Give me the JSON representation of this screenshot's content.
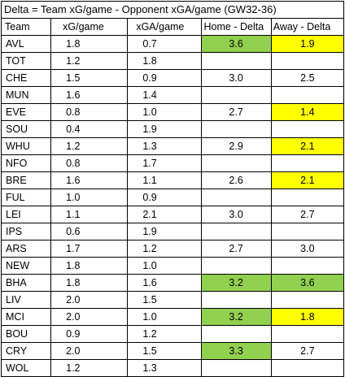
{
  "title": "Delta = Team xG/game - Opponent xGA/game (GW32-36)",
  "headers": {
    "team": "Team",
    "xg": "xG/game",
    "xga": "xGA/game",
    "home": "Home - Delta",
    "away": "Away - Delta"
  },
  "colors": {
    "green": "#92d050",
    "yellow": "#ffff00",
    "border": "#000000"
  },
  "rows": [
    {
      "team": "AVL",
      "xg": "1.8",
      "xga": "0.7",
      "home": "3.6",
      "away": "1.9",
      "home_highlight": "green",
      "away_highlight": "yellow"
    },
    {
      "team": "TOT",
      "xg": "1.2",
      "xga": "1.8",
      "home": "",
      "away": "",
      "home_highlight": "",
      "away_highlight": ""
    },
    {
      "team": "CHE",
      "xg": "1.5",
      "xga": "0.9",
      "home": "3.0",
      "away": "2.5",
      "home_highlight": "",
      "away_highlight": ""
    },
    {
      "team": "MUN",
      "xg": "1.6",
      "xga": "1.4",
      "home": "",
      "away": "",
      "home_highlight": "",
      "away_highlight": ""
    },
    {
      "team": "EVE",
      "xg": "0.8",
      "xga": "1.0",
      "home": "2.7",
      "away": "1.4",
      "home_highlight": "",
      "away_highlight": "yellow"
    },
    {
      "team": "SOU",
      "xg": "0.4",
      "xga": "1.9",
      "home": "",
      "away": "",
      "home_highlight": "",
      "away_highlight": ""
    },
    {
      "team": "WHU",
      "xg": "1.2",
      "xga": "1.3",
      "home": "2.9",
      "away": "2.1",
      "home_highlight": "",
      "away_highlight": "yellow"
    },
    {
      "team": "NFO",
      "xg": "0.8",
      "xga": "1.7",
      "home": "",
      "away": "",
      "home_highlight": "",
      "away_highlight": ""
    },
    {
      "team": "BRE",
      "xg": "1.6",
      "xga": "1.1",
      "home": "2.6",
      "away": "2.1",
      "home_highlight": "",
      "away_highlight": "yellow"
    },
    {
      "team": "FUL",
      "xg": "1.0",
      "xga": "0.9",
      "home": "",
      "away": "",
      "home_highlight": "",
      "away_highlight": ""
    },
    {
      "team": "LEI",
      "xg": "1.1",
      "xga": "2.1",
      "home": "3.0",
      "away": "2.7",
      "home_highlight": "",
      "away_highlight": ""
    },
    {
      "team": "IPS",
      "xg": "0.6",
      "xga": "1.9",
      "home": "",
      "away": "",
      "home_highlight": "",
      "away_highlight": ""
    },
    {
      "team": "ARS",
      "xg": "1.7",
      "xga": "1.2",
      "home": "2.7",
      "away": "3.0",
      "home_highlight": "",
      "away_highlight": ""
    },
    {
      "team": "NEW",
      "xg": "1.8",
      "xga": "1.0",
      "home": "",
      "away": "",
      "home_highlight": "",
      "away_highlight": ""
    },
    {
      "team": "BHA",
      "xg": "1.8",
      "xga": "1.6",
      "home": "3.2",
      "away": "3.6",
      "home_highlight": "green",
      "away_highlight": "green"
    },
    {
      "team": "LIV",
      "xg": "2.0",
      "xga": "1.5",
      "home": "",
      "away": "",
      "home_highlight": "",
      "away_highlight": ""
    },
    {
      "team": "MCI",
      "xg": "2.0",
      "xga": "1.0",
      "home": "3.2",
      "away": "1.8",
      "home_highlight": "green",
      "away_highlight": "yellow"
    },
    {
      "team": "BOU",
      "xg": "0.9",
      "xga": "1.2",
      "home": "",
      "away": "",
      "home_highlight": "",
      "away_highlight": ""
    },
    {
      "team": "CRY",
      "xg": "2.0",
      "xga": "1.5",
      "home": "3.3",
      "away": "2.7",
      "home_highlight": "green",
      "away_highlight": ""
    },
    {
      "team": "WOL",
      "xg": "1.2",
      "xga": "1.3",
      "home": "",
      "away": "",
      "home_highlight": "",
      "away_highlight": ""
    }
  ]
}
